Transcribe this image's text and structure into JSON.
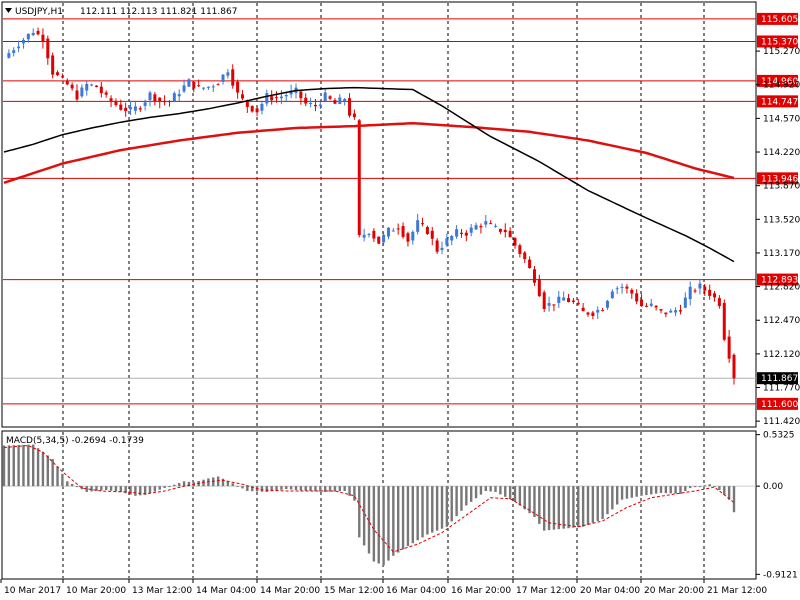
{
  "chart_data": [
    {
      "type": "candlestick",
      "title": "USDJPY,H1",
      "ohlc_readout": [
        "112.111",
        "112.113",
        "111.821",
        "111.867"
      ],
      "current_price": 111.867,
      "current_price_label": "111.867",
      "ylim": [
        111.38,
        115.76
      ],
      "y_ticks": [
        {
          "value": 115.27,
          "label": "115.270"
        },
        {
          "value": 114.92,
          "label": "114.920"
        },
        {
          "value": 114.57,
          "label": "114.570"
        },
        {
          "value": 114.22,
          "label": "114.220"
        },
        {
          "value": 113.87,
          "label": "113.870"
        },
        {
          "value": 113.52,
          "label": "113.520"
        },
        {
          "value": 113.17,
          "label": "113.170"
        },
        {
          "value": 112.82,
          "label": "112.820"
        },
        {
          "value": 112.47,
          "label": "112.470"
        },
        {
          "value": 112.12,
          "label": "112.120"
        },
        {
          "value": 111.77,
          "label": "111.770"
        },
        {
          "value": 111.42,
          "label": "111.420"
        }
      ],
      "horizontal_levels": [
        {
          "value": 115.605,
          "label": "115.605"
        },
        {
          "value": 115.37,
          "label": "115.370"
        },
        {
          "value": 114.96,
          "label": "114.960"
        },
        {
          "value": 114.747,
          "label": "114.747"
        },
        {
          "value": 113.946,
          "label": "113.946"
        },
        {
          "value": 112.893,
          "label": "112.893"
        },
        {
          "value": 111.6,
          "label": "111.600"
        }
      ],
      "x_labels": [
        "10 Mar 2017",
        "10 Mar 20:00",
        "13 Mar 12:00",
        "14 Mar 04:00",
        "14 Mar 20:00",
        "15 Mar 12:00",
        "16 Mar 04:00",
        "16 Mar 20:00",
        "17 Mar 12:00",
        "20 Mar 04:00",
        "20 Mar 20:00",
        "21 Mar 12:00"
      ],
      "vertical_grid_after_label": [
        1,
        2,
        3,
        4,
        5,
        6,
        7,
        8,
        9,
        10,
        11
      ],
      "ma_fast_anchor": [
        [
          0,
          114.22
        ],
        [
          6,
          114.3
        ],
        [
          12,
          114.4
        ],
        [
          18,
          114.47
        ],
        [
          24,
          114.53
        ],
        [
          30,
          114.58
        ],
        [
          36,
          114.62
        ],
        [
          42,
          114.67
        ],
        [
          48,
          114.73
        ],
        [
          54,
          114.8
        ],
        [
          60,
          114.86
        ],
        [
          66,
          114.88
        ],
        [
          72,
          114.89
        ],
        [
          78,
          114.88
        ],
        [
          84,
          114.87
        ],
        [
          90,
          114.7
        ],
        [
          100,
          114.38
        ],
        [
          110,
          114.12
        ],
        [
          120,
          113.82
        ],
        [
          130,
          113.58
        ],
        [
          140,
          113.35
        ],
        [
          145,
          113.22
        ],
        [
          150,
          113.08
        ]
      ],
      "ma_slow_anchor": [
        [
          0,
          113.9
        ],
        [
          12,
          114.1
        ],
        [
          24,
          114.24
        ],
        [
          36,
          114.34
        ],
        [
          48,
          114.42
        ],
        [
          60,
          114.47
        ],
        [
          72,
          114.49
        ],
        [
          84,
          114.52
        ],
        [
          96,
          114.48
        ],
        [
          108,
          114.43
        ],
        [
          120,
          114.34
        ],
        [
          132,
          114.21
        ],
        [
          142,
          114.05
        ],
        [
          150,
          113.95
        ]
      ],
      "close_anchor": [
        [
          0,
          115.2
        ],
        [
          3,
          115.35
        ],
        [
          6,
          115.48
        ],
        [
          8,
          115.4
        ],
        [
          10,
          115.05
        ],
        [
          13,
          114.92
        ],
        [
          15,
          114.8
        ],
        [
          17,
          114.92
        ],
        [
          19,
          114.9
        ],
        [
          21,
          114.78
        ],
        [
          24,
          114.68
        ],
        [
          26,
          114.65
        ],
        [
          28,
          114.7
        ],
        [
          30,
          114.82
        ],
        [
          32,
          114.75
        ],
        [
          34,
          114.75
        ],
        [
          36,
          114.85
        ],
        [
          38,
          114.95
        ],
        [
          40,
          114.88
        ],
        [
          42,
          114.9
        ],
        [
          44,
          114.95
        ],
        [
          46,
          115.08
        ],
        [
          48,
          114.82
        ],
        [
          50,
          114.7
        ],
        [
          52,
          114.65
        ],
        [
          54,
          114.8
        ],
        [
          56,
          114.78
        ],
        [
          58,
          114.82
        ],
        [
          60,
          114.85
        ],
        [
          62,
          114.72
        ],
        [
          64,
          114.7
        ],
        [
          66,
          114.8
        ],
        [
          68,
          114.72
        ],
        [
          70,
          114.78
        ],
        [
          71,
          114.62
        ],
        [
          72,
          114.55
        ],
        [
          73,
          113.33
        ],
        [
          75,
          113.4
        ],
        [
          77,
          113.28
        ],
        [
          79,
          113.4
        ],
        [
          81,
          113.45
        ],
        [
          83,
          113.3
        ],
        [
          85,
          113.48
        ],
        [
          87,
          113.4
        ],
        [
          89,
          113.2
        ],
        [
          91,
          113.3
        ],
        [
          93,
          113.38
        ],
        [
          95,
          113.38
        ],
        [
          97,
          113.45
        ],
        [
          99,
          113.48
        ],
        [
          101,
          113.42
        ],
        [
          103,
          113.4
        ],
        [
          105,
          113.25
        ],
        [
          107,
          113.1
        ],
        [
          109,
          112.9
        ],
        [
          111,
          112.62
        ],
        [
          113,
          112.65
        ],
        [
          115,
          112.7
        ],
        [
          117,
          112.65
        ],
        [
          119,
          112.55
        ],
        [
          121,
          112.55
        ],
        [
          123,
          112.6
        ],
        [
          125,
          112.8
        ],
        [
          127,
          112.82
        ],
        [
          129,
          112.75
        ],
        [
          131,
          112.62
        ],
        [
          133,
          112.62
        ],
        [
          135,
          112.55
        ],
        [
          137,
          112.55
        ],
        [
          139,
          112.6
        ],
        [
          141,
          112.78
        ],
        [
          143,
          112.82
        ],
        [
          145,
          112.75
        ],
        [
          147,
          112.65
        ],
        [
          148,
          112.3
        ],
        [
          149,
          112.11
        ],
        [
          150,
          111.867
        ]
      ],
      "macd": {
        "label": "MACD(5,34,5) -0.2694 -0.1739",
        "ylim": [
          -0.95,
          0.56
        ],
        "y_ticks": [
          {
            "value": 0.5325,
            "label": "0.5325"
          },
          {
            "value": 0,
            "label": "0.00"
          },
          {
            "value": -0.9121,
            "label": "-0.9121"
          }
        ],
        "hist_anchor": [
          [
            0,
            0.42
          ],
          [
            6,
            0.43
          ],
          [
            10,
            0.28
          ],
          [
            13,
            0.05
          ],
          [
            17,
            -0.06
          ],
          [
            21,
            -0.04
          ],
          [
            24,
            -0.06
          ],
          [
            27,
            -0.1
          ],
          [
            29,
            -0.09
          ],
          [
            33,
            -0.02
          ],
          [
            37,
            0.05
          ],
          [
            39,
            0.04
          ],
          [
            42,
            0.08
          ],
          [
            44,
            0.1
          ],
          [
            47,
            0.03
          ],
          [
            50,
            -0.05
          ],
          [
            54,
            -0.06
          ],
          [
            58,
            -0.03
          ],
          [
            62,
            -0.05
          ],
          [
            66,
            -0.06
          ],
          [
            70,
            -0.05
          ],
          [
            72,
            -0.15
          ],
          [
            73,
            -0.53
          ],
          [
            76,
            -0.78
          ],
          [
            78,
            -0.82
          ],
          [
            80,
            -0.72
          ],
          [
            83,
            -0.62
          ],
          [
            87,
            -0.5
          ],
          [
            91,
            -0.42
          ],
          [
            95,
            -0.2
          ],
          [
            99,
            -0.05
          ],
          [
            101,
            -0.06
          ],
          [
            105,
            -0.16
          ],
          [
            109,
            -0.32
          ],
          [
            111,
            -0.46
          ],
          [
            115,
            -0.44
          ],
          [
            119,
            -0.42
          ],
          [
            123,
            -0.34
          ],
          [
            127,
            -0.14
          ],
          [
            131,
            -0.1
          ],
          [
            135,
            -0.07
          ],
          [
            139,
            -0.08
          ],
          [
            141,
            -0.02
          ],
          [
            145,
            0.02
          ],
          [
            147,
            -0.04
          ],
          [
            149,
            -0.14
          ],
          [
            150,
            -0.27
          ]
        ],
        "signal_anchor": [
          [
            0,
            0.4
          ],
          [
            5,
            0.42
          ],
          [
            8,
            0.35
          ],
          [
            12,
            0.15
          ],
          [
            16,
            -0.02
          ],
          [
            20,
            -0.05
          ],
          [
            25,
            -0.06
          ],
          [
            29,
            -0.08
          ],
          [
            33,
            -0.05
          ],
          [
            37,
            0.0
          ],
          [
            41,
            0.04
          ],
          [
            45,
            0.06
          ],
          [
            49,
            0.02
          ],
          [
            53,
            -0.04
          ],
          [
            58,
            -0.05
          ],
          [
            63,
            -0.05
          ],
          [
            68,
            -0.05
          ],
          [
            72,
            -0.1
          ],
          [
            76,
            -0.45
          ],
          [
            80,
            -0.68
          ],
          [
            85,
            -0.6
          ],
          [
            90,
            -0.48
          ],
          [
            95,
            -0.3
          ],
          [
            100,
            -0.12
          ],
          [
            104,
            -0.13
          ],
          [
            108,
            -0.25
          ],
          [
            112,
            -0.38
          ],
          [
            118,
            -0.42
          ],
          [
            123,
            -0.36
          ],
          [
            128,
            -0.22
          ],
          [
            133,
            -0.12
          ],
          [
            138,
            -0.08
          ],
          [
            142,
            -0.05
          ],
          [
            146,
            -0.01
          ],
          [
            150,
            -0.17
          ]
        ]
      }
    }
  ],
  "colors": {
    "background": "#ffffff",
    "bull_candle": "#3c78d8",
    "bear_candle": "#e00000",
    "level_line": "#e00000",
    "level_label_bg": "#e00000",
    "ma_fast": "#000000",
    "ma_slow": "#dd1010",
    "macd_hist": "#777777",
    "macd_signal": "#e00000",
    "price_label_bg": "#000000",
    "grid": "#000000",
    "axis": "#000000"
  }
}
